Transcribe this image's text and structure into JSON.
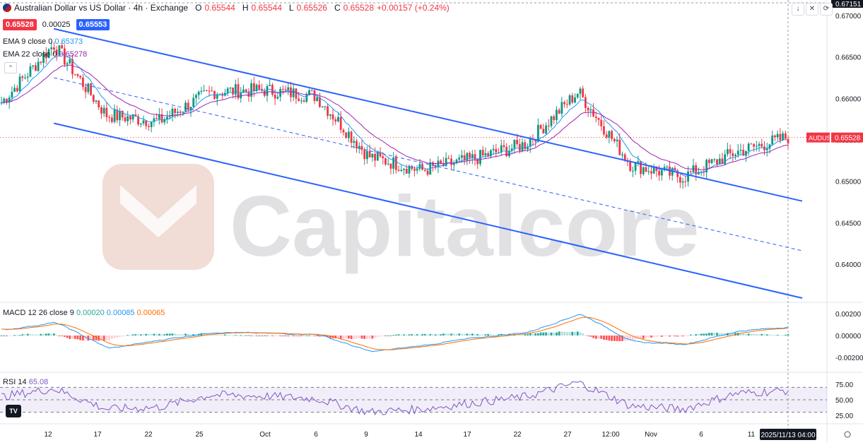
{
  "header": {
    "title": "Australian Dollar vs US Dollar · 4h · Exchange",
    "open_label": "O",
    "open": "0.65544",
    "high_label": "H",
    "high": "0.65544",
    "low_label": "L",
    "low": "0.65526",
    "close_label": "C",
    "close": "0.65528",
    "change": "+0.00157 (+0.24%)"
  },
  "quote": {
    "sell": "0.65528",
    "spread": "0.00025",
    "buy": "0.65553"
  },
  "indicators": {
    "ema9": {
      "label": "EMA 9 close 0",
      "value": "0.65373",
      "color": "#2196f3"
    },
    "ema22": {
      "label": "EMA 22 close 0",
      "value": "0.65278",
      "color": "#9c27b0"
    },
    "macd": {
      "label": "MACD 12 26 close 9",
      "hist": "0.00020",
      "macd": "0.00085",
      "signal": "0.00065"
    },
    "rsi": {
      "label": "RSI 14",
      "value": "65.08",
      "color": "#7e57c2"
    }
  },
  "price_axis": {
    "top_label": "0.67151",
    "ticks": [
      "0.67000",
      "0.66500",
      "0.66000",
      "0.65500",
      "0.65000",
      "0.64500",
      "0.64000"
    ],
    "symbol_tag": "AUDUSD",
    "last_price": "0.65528"
  },
  "macd_axis": {
    "ticks": [
      "0.00200",
      "0.00000",
      "-0.00200"
    ]
  },
  "rsi_axis": {
    "ticks": [
      "75.00",
      "50.00",
      "25.00"
    ]
  },
  "time_axis": {
    "labels": [
      "12",
      "17",
      "22",
      "25",
      "Oct",
      "6",
      "9",
      "14",
      "17",
      "22",
      "27",
      "12:00",
      "Nov",
      "6",
      "11"
    ],
    "cursor_label": "2025/11/13  04:00"
  },
  "watermark": "Capitalcore",
  "chart_data": {
    "type": "line",
    "symbol": "AUDUSD",
    "timeframe": "4h",
    "ylim": [
      0.6355,
      0.6718
    ],
    "x": [
      "Sep 12",
      "Sep 17",
      "Sep 22",
      "Sep 25",
      "Oct 1",
      "Oct 6",
      "Oct 9",
      "Oct 14",
      "Oct 17",
      "Oct 22",
      "Oct 27",
      "Oct 30 12:00",
      "Nov 3",
      "Nov 6",
      "Nov 11",
      "Nov 13"
    ],
    "close": [
      0.6595,
      0.6665,
      0.658,
      0.6572,
      0.6608,
      0.661,
      0.6603,
      0.653,
      0.6513,
      0.6527,
      0.6545,
      0.6608,
      0.652,
      0.6505,
      0.6535,
      0.6553
    ],
    "channel": {
      "upper": [
        [
          "Sep 17",
          0.6684
        ],
        [
          "Nov 13",
          0.648
        ]
      ],
      "middle": [
        [
          "Sep 17",
          0.6625
        ],
        [
          "Nov 13",
          0.642
        ]
      ],
      "lower": [
        [
          "Sep 17",
          0.657
        ],
        [
          "Nov 13",
          0.6363
        ]
      ]
    },
    "macd": [
      0.0005,
      0.0012,
      -0.0012,
      -0.0004,
      0.0003,
      0.0002,
      0.0001,
      -0.0015,
      -0.0009,
      -0.0002,
      0.0003,
      0.002,
      -0.0006,
      -0.0008,
      0.0004,
      0.0008
    ],
    "rsi": [
      55,
      68,
      35,
      38,
      58,
      56,
      52,
      30,
      35,
      45,
      55,
      78,
      40,
      35,
      60,
      65
    ]
  }
}
